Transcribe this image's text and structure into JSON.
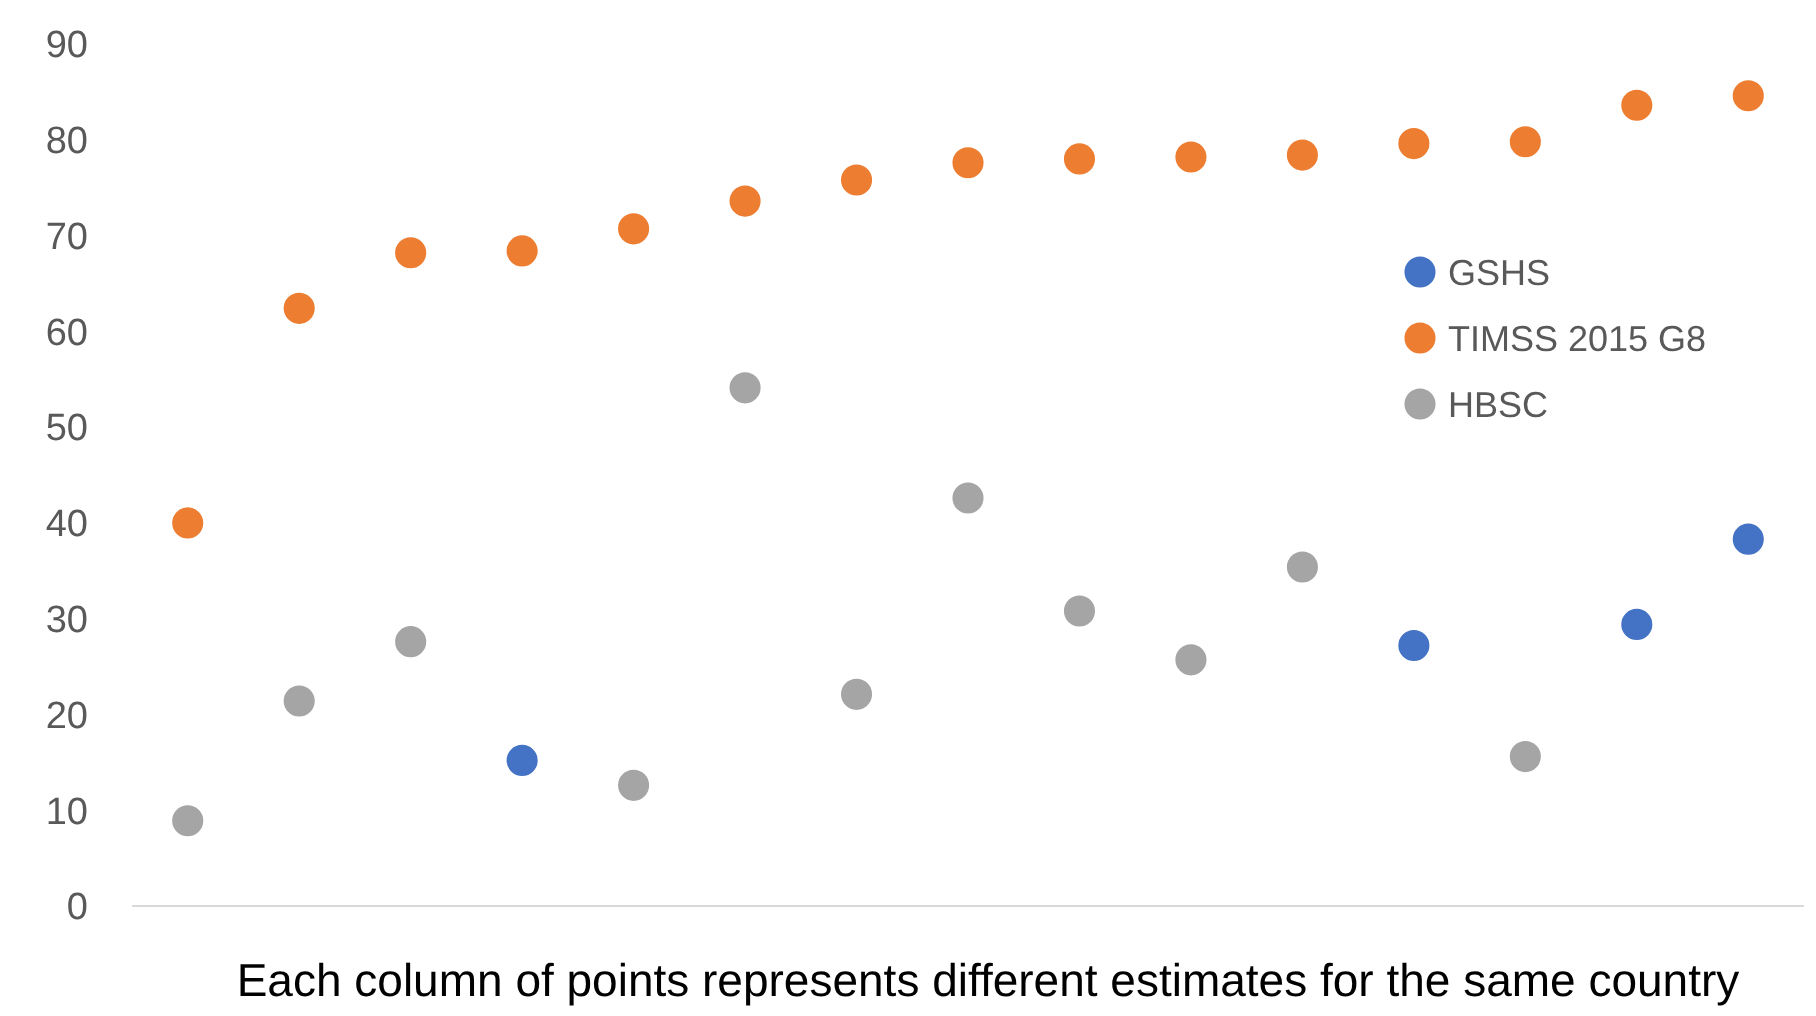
{
  "chart_data": {
    "type": "scatter",
    "xlabel": "Each column of points represents different estimates for the same country",
    "categories": [
      null,
      null,
      null,
      null,
      null,
      null,
      null,
      null,
      null,
      null,
      null,
      null,
      null,
      null,
      null
    ],
    "series": [
      {
        "name": "GSHS",
        "color": "#4472c4",
        "values": [
          null,
          null,
          null,
          15.2,
          null,
          null,
          null,
          null,
          null,
          null,
          null,
          27.2,
          null,
          29.4,
          38.3
        ]
      },
      {
        "name": "TIMSS 2015 G8",
        "color": "#ed7d31",
        "values": [
          40,
          62.4,
          68.2,
          68.4,
          70.7,
          73.6,
          75.8,
          77.6,
          78,
          78.2,
          78.4,
          79.6,
          79.8,
          83.6,
          84.6
        ]
      },
      {
        "name": "HBSC",
        "color": "#a5a5a5",
        "values": [
          8.9,
          21.4,
          27.6,
          null,
          12.6,
          54.1,
          22.1,
          42.6,
          30.8,
          25.7,
          35.4,
          null,
          15.6,
          null,
          null
        ]
      }
    ],
    "ylim": [
      0,
      90
    ],
    "yticks": [
      0,
      10,
      20,
      30,
      40,
      50,
      60,
      70,
      80,
      90
    ],
    "grid": false,
    "legend": "right",
    "marker": "circle"
  }
}
